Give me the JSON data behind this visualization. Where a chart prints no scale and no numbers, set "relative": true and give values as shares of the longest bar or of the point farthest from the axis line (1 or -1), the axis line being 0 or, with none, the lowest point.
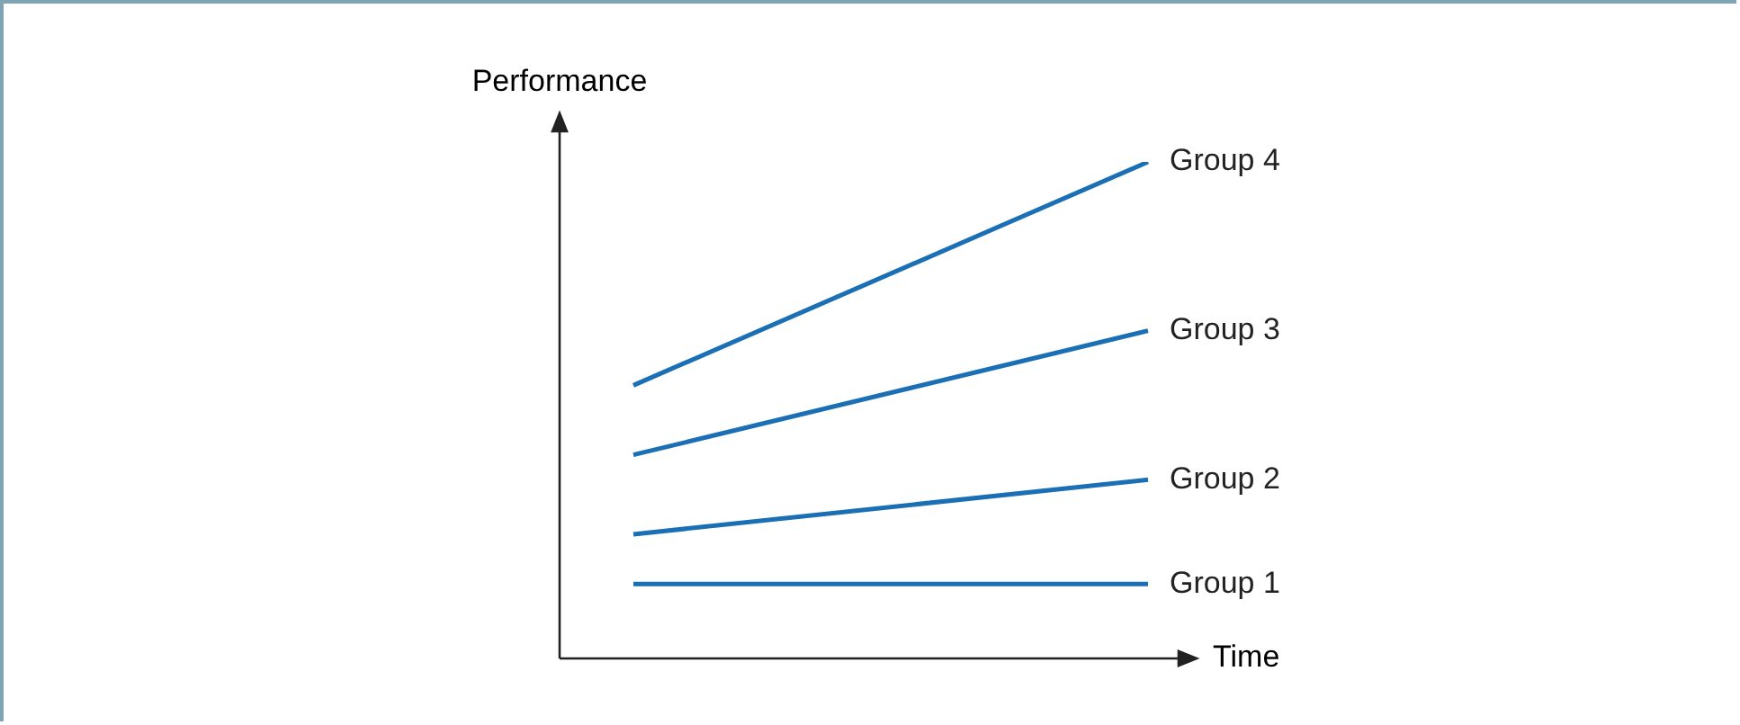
{
  "chart_data": {
    "type": "line",
    "relative": true,
    "xlabel": "Time",
    "ylabel": "Performance",
    "categories": [
      null,
      null
    ],
    "series": [
      {
        "name": "Group 4",
        "color": "#1a6fb5",
        "values": [
          0.55,
          1
        ]
      },
      {
        "name": "Group 3",
        "color": "#1a6fb5",
        "values": [
          0.41,
          0.66
        ]
      },
      {
        "name": "Group 2",
        "color": "#1a6fb5",
        "values": [
          0.25,
          0.36
        ]
      },
      {
        "name": "Group 1",
        "color": "#1a6fb5",
        "values": [
          0.15,
          0.15
        ]
      }
    ],
    "marker": "none"
  }
}
